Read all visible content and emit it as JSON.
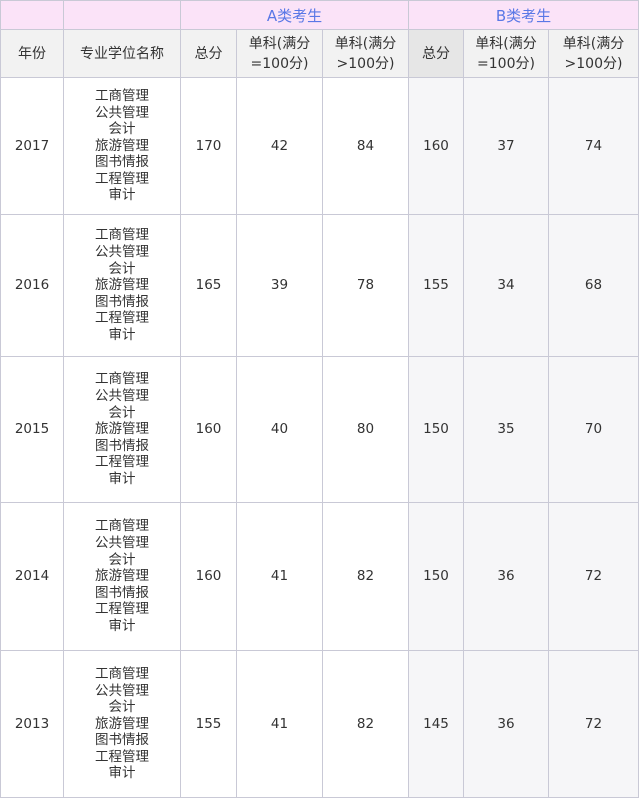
{
  "header": {
    "group_a": "A类考生",
    "group_b": "B类考生",
    "year": "年份",
    "major": "专业学位名称",
    "total": "总分",
    "single_100": "单科(满分=100分)",
    "single_over100": "单科(满分>100分)"
  },
  "rows": [
    {
      "year": "2017",
      "majors": [
        "工商管理",
        "公共管理",
        "会计",
        "旅游管理",
        "图书情报",
        "工程管理",
        "审计"
      ],
      "a": [
        "170",
        "42",
        "84"
      ],
      "b": [
        "160",
        "37",
        "74"
      ]
    },
    {
      "year": "2016",
      "majors": [
        "工商管理",
        "公共管理",
        "会计",
        "旅游管理",
        "图书情报",
        "工程管理",
        "审计"
      ],
      "a": [
        "165",
        "39",
        "78"
      ],
      "b": [
        "155",
        "34",
        "68"
      ]
    },
    {
      "year": "2015",
      "majors": [
        "工商管理",
        "公共管理",
        "会计",
        "旅游管理",
        "图书情报",
        "工程管理",
        "审计"
      ],
      "a": [
        "160",
        "40",
        "80"
      ],
      "b": [
        "150",
        "35",
        "70"
      ]
    },
    {
      "year": "2014",
      "majors": [
        "工商管理",
        "公共管理",
        "会计",
        "旅游管理",
        "图书情报",
        "工程管理",
        "审计"
      ],
      "a": [
        "160",
        "41",
        "82"
      ],
      "b": [
        "150",
        "36",
        "72"
      ]
    },
    {
      "year": "2013",
      "majors": [
        "工商管理",
        "公共管理",
        "会计",
        "旅游管理",
        "图书情报",
        "工程管理",
        "审计"
      ],
      "a": [
        "155",
        "41",
        "82"
      ],
      "b": [
        "145",
        "36",
        "72"
      ]
    }
  ]
}
